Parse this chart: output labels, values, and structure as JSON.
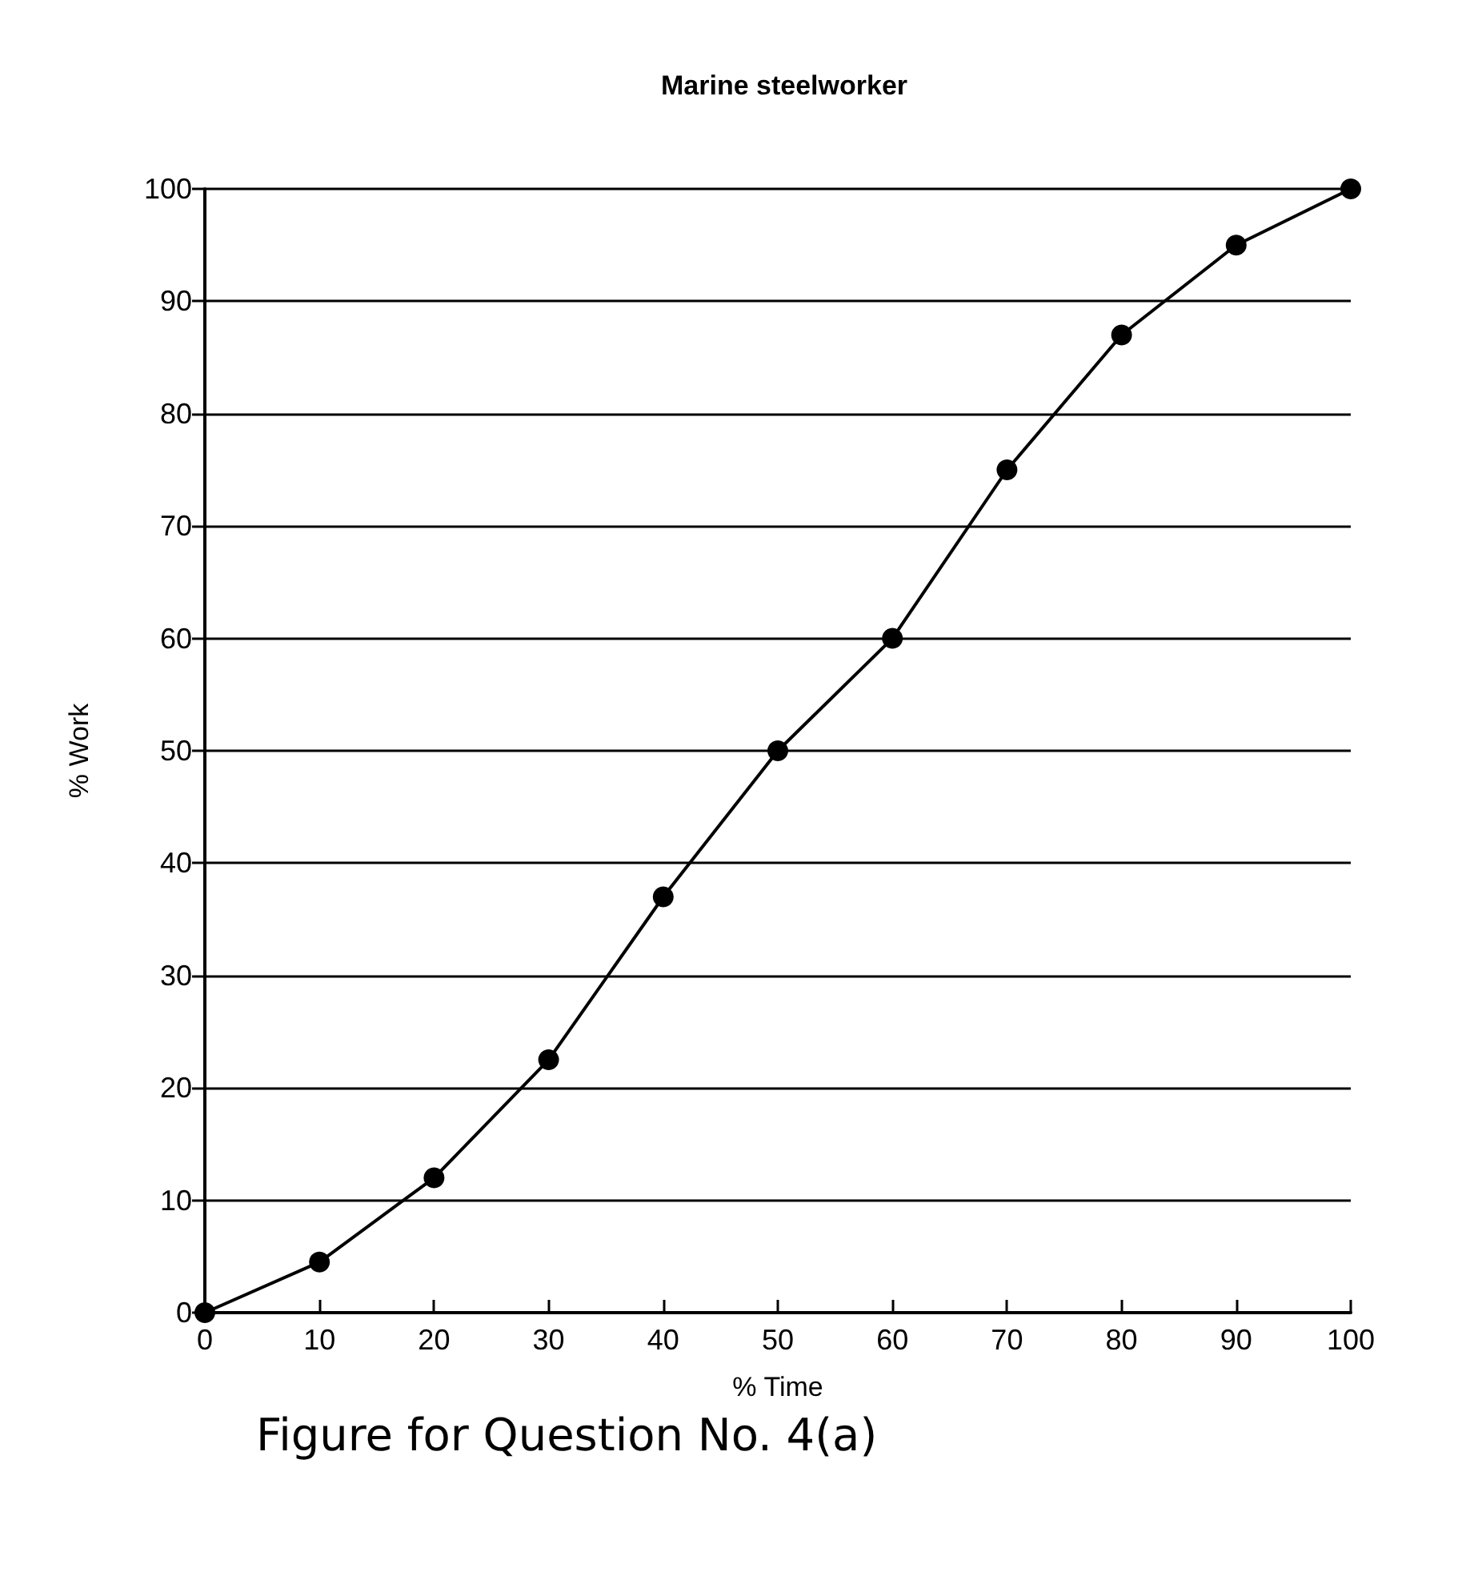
{
  "chart_data": {
    "type": "line",
    "title": "Marine steelworker",
    "xlabel": "% Time",
    "ylabel": "% Work",
    "x": [
      0,
      10,
      20,
      30,
      40,
      50,
      60,
      70,
      80,
      90,
      100
    ],
    "series": [
      {
        "color": "#000000",
        "values": [
          0,
          4.5,
          12,
          22.5,
          37,
          50,
          60,
          75,
          87,
          95,
          100
        ]
      }
    ],
    "xlim": [
      0,
      100
    ],
    "xticks": [
      0,
      10,
      20,
      30,
      40,
      50,
      60,
      70,
      80,
      90,
      100
    ],
    "ylim": [
      0,
      100
    ],
    "yticks": [
      0,
      10,
      20,
      30,
      40,
      50,
      60,
      70,
      80,
      90,
      100
    ],
    "grid": "y",
    "marker": "circle",
    "line_style": "solid",
    "annotations": [
      "Figure for Question No. 4(a)"
    ]
  }
}
